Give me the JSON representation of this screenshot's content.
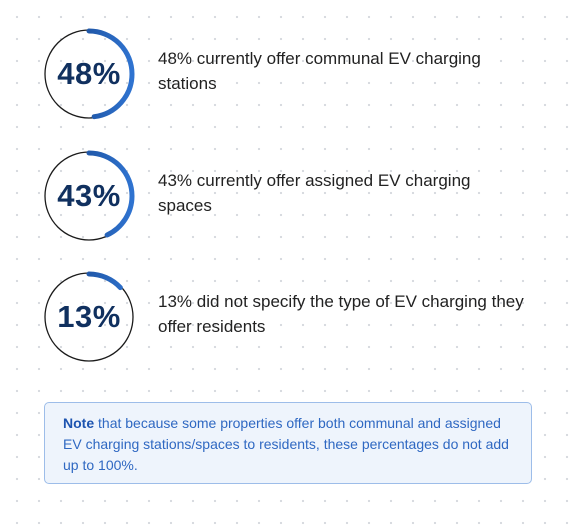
{
  "colors": {
    "arc_dark": "#133f84",
    "arc_light": "#2f73d0",
    "ring_track": "#1b1b1b",
    "value_text": "#10305f",
    "note_text": "#2f68c2",
    "note_bg": "#eef4fc",
    "note_border": "#9dbde9"
  },
  "stats": [
    {
      "value_label": "48%",
      "fraction": 0.48,
      "text": "48% currently offer communal EV charging stations"
    },
    {
      "value_label": "43%",
      "fraction": 0.43,
      "text": "43% currently offer assigned EV charging spaces"
    },
    {
      "value_label": "13%",
      "fraction": 0.13,
      "text": "13% did not specify the type of EV charging they offer residents"
    }
  ],
  "note": {
    "lead": "Note",
    "body": " that because some properties offer both communal and assigned EV charging stations/spaces to residents, these percentages do not add up to 100%."
  }
}
